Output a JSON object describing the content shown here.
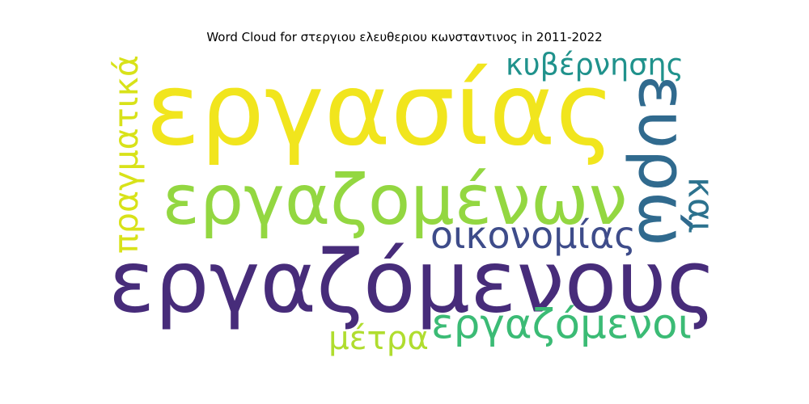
{
  "chart_data": {
    "type": "wordcloud",
    "title": "Word Cloud for στεργιου ελευθεριου κωνσταντινος in 2011-2022",
    "words": [
      {
        "text": "εργαζόμενους",
        "weight": 1.0,
        "color": "#472c7a",
        "orientation": "horizontal"
      },
      {
        "text": "εργασίας",
        "weight": 0.95,
        "color": "#f1e51d",
        "orientation": "horizontal"
      },
      {
        "text": "εργαζομένων",
        "weight": 0.78,
        "color": "#93d741",
        "orientation": "horizontal"
      },
      {
        "text": "ευρώ",
        "weight": 0.55,
        "color": "#306a8e",
        "orientation": "vertical"
      },
      {
        "text": "εργαζόμενοι",
        "weight": 0.42,
        "color": "#3bbb75",
        "orientation": "horizontal"
      },
      {
        "text": "κυβέρνησης",
        "weight": 0.35,
        "color": "#20928c",
        "orientation": "horizontal"
      },
      {
        "text": "οικονομίας",
        "weight": 0.35,
        "color": "#3e4c8a",
        "orientation": "horizontal"
      },
      {
        "text": "πραγματικά",
        "weight": 0.38,
        "color": "#d8e219",
        "orientation": "vertical"
      },
      {
        "text": "μέτρα",
        "weight": 0.35,
        "color": "#b0dd2f",
        "orientation": "horizontal"
      },
      {
        "text": "και",
        "weight": 0.32,
        "color": "#2c728e",
        "orientation": "vertical"
      }
    ]
  }
}
